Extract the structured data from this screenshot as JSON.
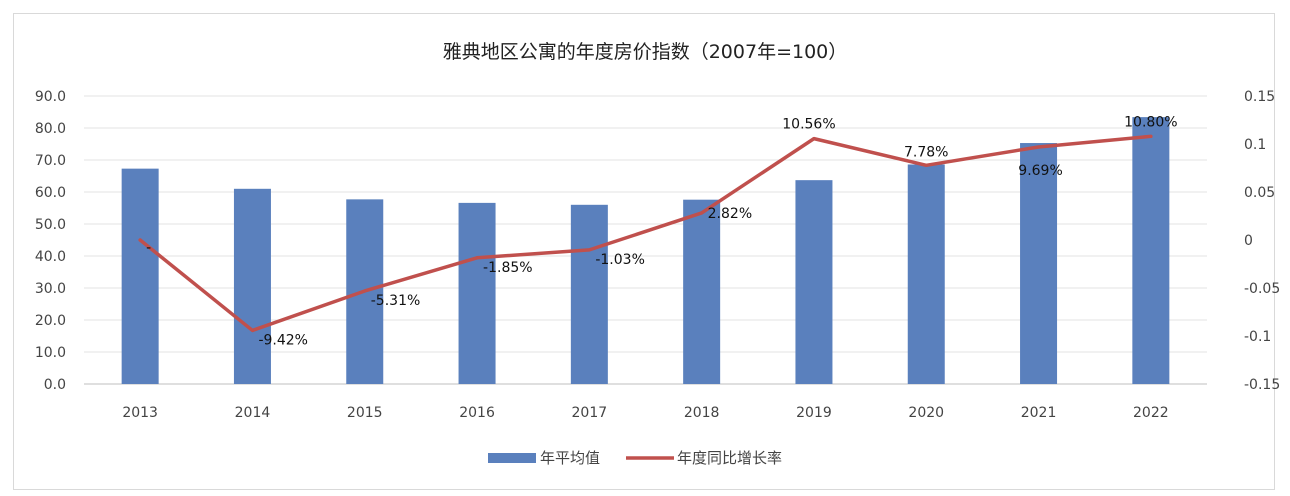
{
  "chart_data": {
    "type": "bar",
    "title": "雅典地区公寓的年度房价指数（2007年=100）",
    "categories": [
      "2013",
      "2014",
      "2015",
      "2016",
      "2017",
      "2018",
      "2019",
      "2020",
      "2021",
      "2022"
    ],
    "series": [
      {
        "name": "年平均值",
        "type": "bar",
        "axis": "left",
        "color": "#5a80bd",
        "values": [
          67.3,
          61.0,
          57.7,
          56.6,
          56.0,
          57.6,
          63.7,
          68.6,
          75.3,
          83.4
        ]
      },
      {
        "name": "年度同比增长率",
        "type": "line",
        "axis": "right",
        "color": "#c0504d",
        "values": [
          0,
          -0.0942,
          -0.0531,
          -0.0185,
          -0.0103,
          0.0282,
          0.1056,
          0.0778,
          0.0969,
          0.108
        ],
        "labels": [
          "-",
          "-9.42%",
          "-5.31%",
          "-1.85%",
          "-1.03%",
          "2.82%",
          "10.56%",
          "7.78%",
          "9.69%",
          "10.80%"
        ]
      }
    ],
    "y_left": {
      "min": 0,
      "max": 90,
      "step": 10,
      "tick_labels": [
        "0.0",
        "10.0",
        "20.0",
        "30.0",
        "40.0",
        "50.0",
        "60.0",
        "70.0",
        "80.0",
        "90.0"
      ]
    },
    "y_right": {
      "min": -0.15,
      "max": 0.15,
      "step": 0.05,
      "tick_labels": [
        "-0.15",
        "-0.1",
        "-0.05",
        "0",
        "0.05",
        "0.1",
        "0.15"
      ]
    },
    "grid": true,
    "legend": "bottom"
  }
}
